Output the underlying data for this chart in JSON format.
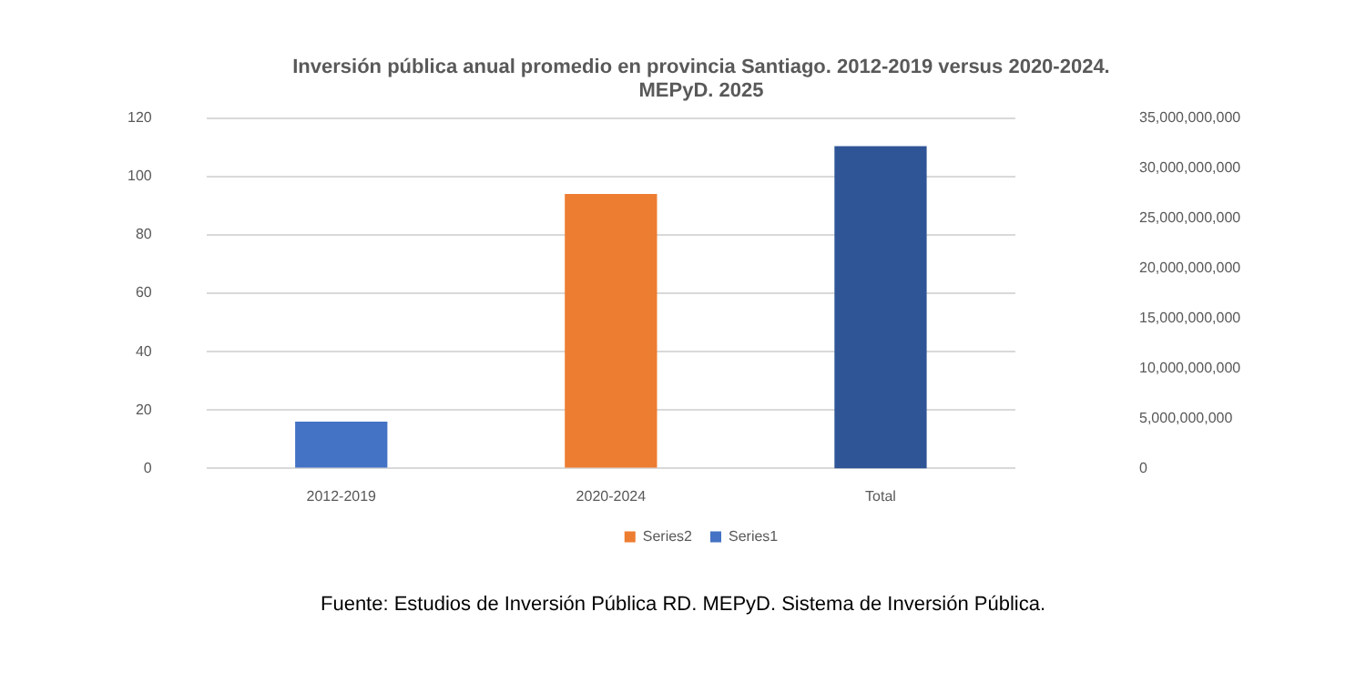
{
  "chart_data": {
    "type": "bar",
    "title": "Inversión pública anual promedio en provincia Santiago. 2012-2019 versus 2020-2024.\nMEPyD. 2025",
    "categories": [
      "2012-2019",
      "2020-2024",
      "Total"
    ],
    "series": [
      {
        "name": "Series2",
        "color": "#ed7d31",
        "values": [
          null,
          94,
          null
        ]
      },
      {
        "name": "Series1",
        "color": "#4472c4",
        "values": [
          16,
          null,
          null
        ]
      },
      {
        "color": "#2f5597",
        "values": [
          null,
          null,
          32200000000
        ],
        "axis": "y2"
      }
    ],
    "ylim": [
      0,
      120
    ],
    "yticks": [
      0,
      20,
      40,
      60,
      80,
      100,
      120
    ],
    "y2lim": [
      0,
      35000000000
    ],
    "y2ticks": [
      0,
      {
        "value": 5000000000,
        "label": "5,000,000,000"
      },
      {
        "value": 10000000000,
        "label": "10,000,000,000"
      },
      {
        "value": 15000000000,
        "label": "15,000,000,000"
      },
      {
        "value": 20000000000,
        "label": "20,000,000,000"
      },
      {
        "value": 25000000000,
        "label": "25,000,000,000"
      },
      {
        "value": 30000000000,
        "label": "30,000,000,000"
      },
      {
        "value": 35000000000,
        "label": "35,000,000,000"
      }
    ],
    "grid": "y",
    "legend": "bottom",
    "annotations": [
      "Fuente: Estudios de Inversión Pública RD. MEPyD. Sistema de Inversión Pública."
    ]
  }
}
